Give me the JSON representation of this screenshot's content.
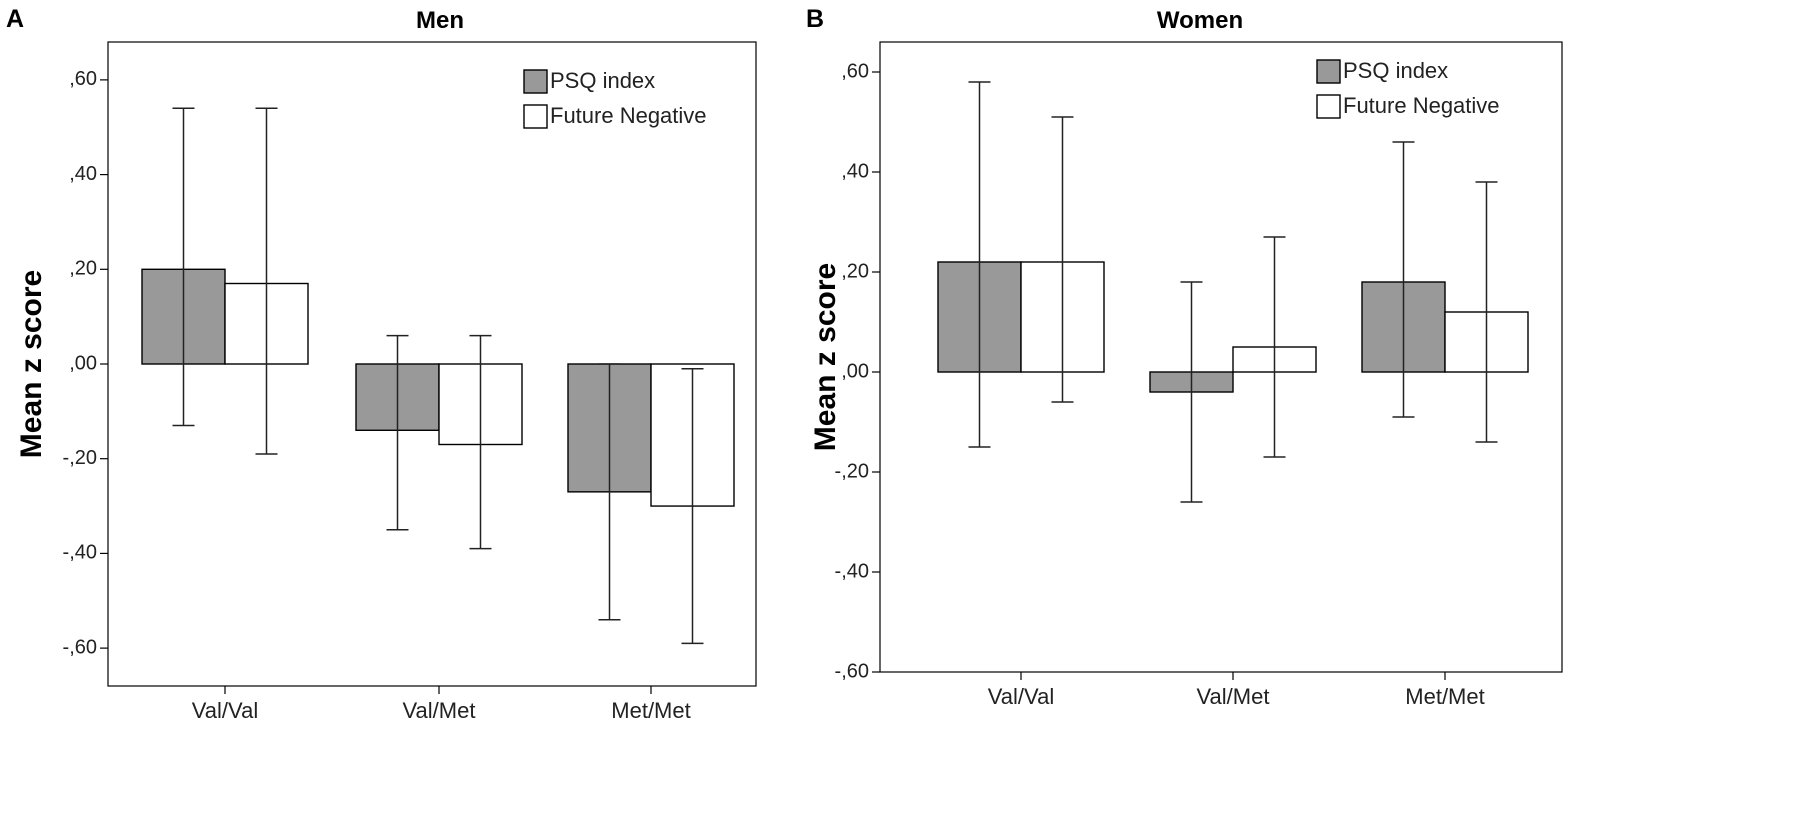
{
  "chart_data": [
    {
      "panel_label": "A",
      "type": "bar",
      "title": "Men",
      "xlabel": "",
      "ylabel": "Mean z score",
      "ylim": [
        -0.68,
        0.68
      ],
      "yticks": [
        0.6,
        0.4,
        0.2,
        0.0,
        -0.2,
        -0.4,
        -0.6
      ],
      "ytick_labels": [
        ",60",
        ",40",
        ",20",
        ",00",
        "-,20",
        "-,40",
        "-,60"
      ],
      "categories": [
        "Val/Val",
        "Val/Met",
        "Met/Met"
      ],
      "legend_position": "top-right",
      "series": [
        {
          "name": "PSQ index",
          "color": "#999999",
          "values": [
            0.2,
            -0.14,
            -0.27
          ],
          "err_low": [
            -0.13,
            -0.35,
            -0.54
          ],
          "err_high": [
            0.54,
            0.06,
            0.0
          ]
        },
        {
          "name": "Future Negative",
          "color": "#ffffff",
          "values": [
            0.17,
            -0.17,
            -0.3
          ],
          "err_low": [
            -0.19,
            -0.39,
            -0.59
          ],
          "err_high": [
            0.54,
            0.06,
            -0.01
          ]
        }
      ]
    },
    {
      "panel_label": "B",
      "type": "bar",
      "title": "Women",
      "xlabel": "",
      "ylabel": "Mean z score",
      "ylim": [
        -0.6,
        0.66
      ],
      "yticks": [
        0.6,
        0.4,
        0.2,
        0.0,
        -0.2,
        -0.4,
        -0.6
      ],
      "ytick_labels": [
        ",60",
        ",40",
        ",20",
        ",00",
        "-,20",
        "-,40",
        "-,60"
      ],
      "categories": [
        "Val/Val",
        "Val/Met",
        "Met/Met"
      ],
      "legend_position": "top-right",
      "series": [
        {
          "name": "PSQ index",
          "color": "#999999",
          "values": [
            0.22,
            -0.04,
            0.18
          ],
          "err_low": [
            -0.15,
            -0.26,
            -0.09
          ],
          "err_high": [
            0.58,
            0.18,
            0.46
          ]
        },
        {
          "name": "Future Negative",
          "color": "#ffffff",
          "values": [
            0.22,
            0.05,
            0.12
          ],
          "err_low": [
            -0.06,
            -0.17,
            -0.14
          ],
          "err_high": [
            0.51,
            0.27,
            0.38
          ]
        }
      ]
    }
  ]
}
